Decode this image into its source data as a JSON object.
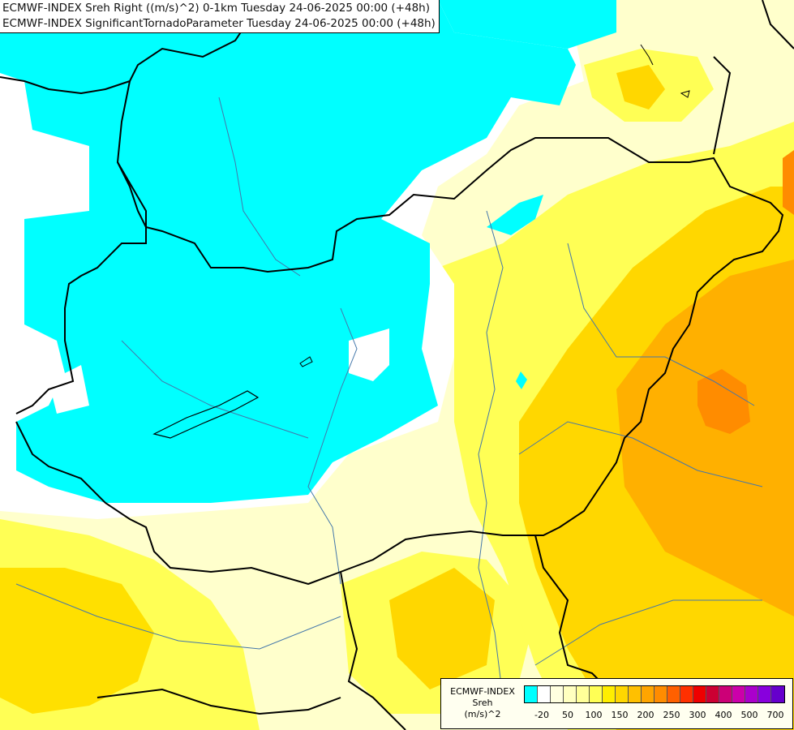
{
  "header": {
    "line1": "ECMWF-INDEX Sreh Right ((m/s)^2) 0-1km Tuesday 24-06-2025 00:00 (+48h)",
    "line2": "ECMWF-INDEX SignificantTornadoParameter Tuesday 24-06-2025 00:00 (+48h)"
  },
  "legend": {
    "title_line1": "ECMWF-INDEX",
    "title_line2": "Sreh",
    "title_line3": "(m/s)^2",
    "colors": [
      "#00ffff",
      "#ffffff",
      "#ffffe0",
      "#ffffc0",
      "#ffff99",
      "#ffff55",
      "#ffee00",
      "#ffd700",
      "#ffc000",
      "#ffa500",
      "#ff8c00",
      "#ff6000",
      "#ff3000",
      "#ee0000",
      "#cc0033",
      "#cc0077",
      "#cc00aa",
      "#aa00cc",
      "#8800dd",
      "#6600cc",
      "#3300aa",
      "#000080"
    ],
    "ticks": [
      "-20",
      "50",
      "100",
      "150",
      "200",
      "250",
      "300",
      "400",
      "500",
      "700"
    ]
  },
  "map": {
    "field_colors": {
      "cyan": "#00ffff",
      "white": "#ffffff",
      "pale": "#ffffcc",
      "light": "#ffff99",
      "yellow": "#ffff44",
      "gold": "#ffd700",
      "amber": "#ffb300",
      "orange": "#ff8c00"
    }
  }
}
